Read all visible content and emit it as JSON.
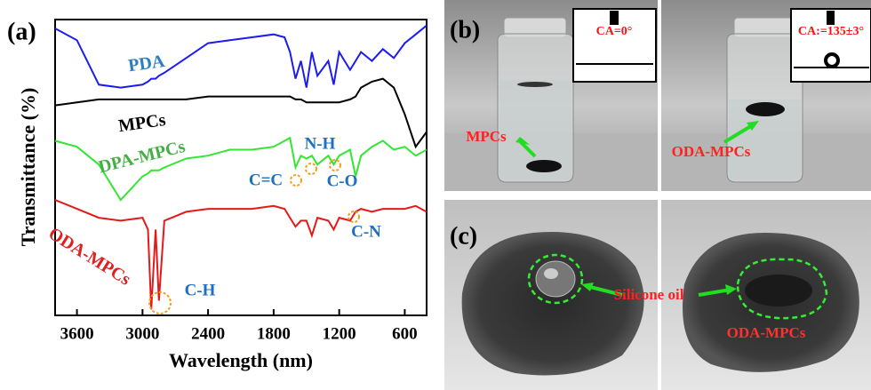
{
  "chart_data": {
    "type": "line",
    "panel_label": "(a)",
    "x_label": "Wavelength (nm)",
    "y_label": "Transmittance (%)",
    "xlim": [
      3800,
      400
    ],
    "xticks": [
      3600,
      3000,
      2400,
      1800,
      1200,
      600
    ],
    "ylim": [
      0,
      100
    ],
    "x": [
      3800,
      3600,
      3400,
      3200,
      3000,
      2950,
      2920,
      2880,
      2850,
      2800,
      2600,
      2400,
      2200,
      2000,
      1800,
      1700,
      1650,
      1600,
      1550,
      1500,
      1450,
      1400,
      1300,
      1250,
      1200,
      1100,
      1050,
      1000,
      900,
      800,
      700,
      600,
      500,
      400
    ],
    "series": [
      {
        "name": "PDA",
        "color": "#1c1cf0",
        "values": [
          97,
          93,
          78,
          77,
          78,
          79,
          80,
          80,
          81,
          82,
          87,
          92,
          93,
          94,
          95,
          94,
          89,
          80,
          86,
          77,
          89,
          81,
          86,
          78,
          89,
          83,
          86,
          89,
          86,
          90,
          87,
          92,
          95,
          98
        ]
      },
      {
        "name": "MPCs",
        "color": "#000000",
        "values": [
          71,
          72,
          73,
          73,
          73,
          73,
          73,
          73,
          73,
          73,
          73,
          74,
          74,
          74,
          74,
          74,
          74,
          73,
          73,
          72,
          72,
          72,
          72,
          72,
          72,
          73,
          74,
          77,
          79,
          80,
          77,
          68,
          57,
          62
        ]
      },
      {
        "name": "DPA-MPCs",
        "color": "#33e633",
        "values": [
          59,
          57,
          51,
          39,
          47,
          48,
          49,
          49,
          49,
          50,
          53,
          54,
          56,
          56,
          57,
          59,
          60,
          50,
          54,
          53,
          54,
          51,
          54,
          51,
          54,
          56,
          47,
          54,
          57,
          59,
          56,
          57,
          54,
          56
        ]
      },
      {
        "name": "ODA-MPCs",
        "color": "#e61919",
        "values": [
          39,
          36,
          33,
          32,
          33,
          29,
          2,
          29,
          5,
          32,
          35,
          36,
          36,
          36,
          37,
          36,
          33,
          30,
          32,
          32,
          27,
          33,
          32,
          29,
          33,
          32,
          35,
          36,
          35,
          36,
          36,
          36,
          37,
          35
        ]
      }
    ],
    "annotations": [
      "C=C",
      "N-H",
      "C-O",
      "C-N",
      "C-H"
    ]
  },
  "panels": {
    "b": {
      "label": "(b)",
      "left": {
        "contact_angle": "CA=0°",
        "sample": "MPCs"
      },
      "right": {
        "contact_angle": "CA:=135±3°",
        "sample": "ODA-MPCs"
      }
    },
    "c": {
      "label": "(c)",
      "liquid": "Silicone oil",
      "sample": "ODA-MPCs"
    }
  }
}
